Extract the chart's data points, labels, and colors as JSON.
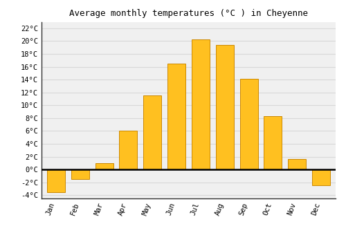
{
  "title": "Average monthly temperatures (°C ) in Cheyenne",
  "months": [
    "Jan",
    "Feb",
    "Mar",
    "Apr",
    "May",
    "Jun",
    "Jul",
    "Aug",
    "Sep",
    "Oct",
    "Nov",
    "Dec"
  ],
  "temperatures": [
    -3.5,
    -1.5,
    1.0,
    6.0,
    11.5,
    16.5,
    20.3,
    19.4,
    14.1,
    8.3,
    1.6,
    -2.5
  ],
  "ylim": [
    -4.5,
    23
  ],
  "yticks": [
    -4,
    -2,
    0,
    2,
    4,
    6,
    8,
    10,
    12,
    14,
    16,
    18,
    20,
    22
  ],
  "ytick_labels": [
    "-4°C",
    "-2°C",
    "0°C",
    "2°C",
    "4°C",
    "6°C",
    "8°C",
    "10°C",
    "12°C",
    "14°C",
    "16°C",
    "18°C",
    "20°C",
    "22°C"
  ],
  "grid_color": "#d8d8d8",
  "bg_color": "#ffffff",
  "plot_bg_color": "#f0f0f0",
  "zero_line_color": "#000000",
  "bar_color_main": "#FFC020",
  "bar_edge": "#CC8800",
  "bar_width": 0.75
}
